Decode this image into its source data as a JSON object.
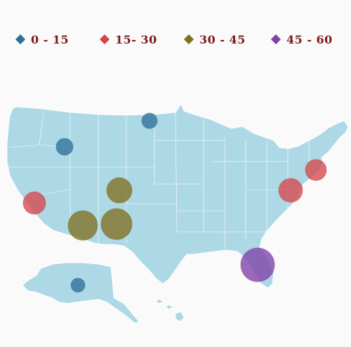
{
  "legend": {
    "items": [
      {
        "label": "0 - 15",
        "color": "#2f6f9a"
      },
      {
        "label": "15- 30",
        "color": "#d6474b"
      },
      {
        "label": "30 - 45",
        "color": "#7f7020"
      },
      {
        "label": "45 - 60",
        "color": "#8040a8"
      }
    ]
  },
  "map": {
    "land_color": "#add8e6",
    "border_color": "#ffffff",
    "regions": [
      "contiguous-us",
      "alaska",
      "hawaii"
    ]
  },
  "bubbles": [
    {
      "name": "bubble-north-dakota",
      "category": 0
    },
    {
      "name": "bubble-idaho",
      "category": 0
    },
    {
      "name": "bubble-alaska",
      "category": 0
    },
    {
      "name": "bubble-california",
      "category": 1
    },
    {
      "name": "bubble-new-jersey",
      "category": 1
    },
    {
      "name": "bubble-virginia",
      "category": 1
    },
    {
      "name": "bubble-utah",
      "category": 2
    },
    {
      "name": "bubble-arizona",
      "category": 2
    },
    {
      "name": "bubble-new-mexico",
      "category": 2
    },
    {
      "name": "bubble-florida",
      "category": 3
    }
  ]
}
